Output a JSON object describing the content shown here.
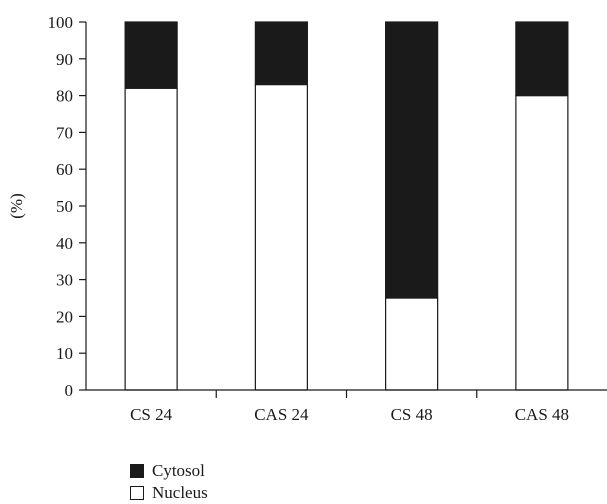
{
  "chart_data": {
    "type": "bar",
    "stacked": true,
    "categories": [
      "CS 24",
      "CAS 24",
      "CS 48",
      "CAS 48"
    ],
    "series": [
      {
        "name": "Nucleus",
        "values": [
          82,
          83,
          25,
          80
        ],
        "color": "#ffffff"
      },
      {
        "name": "Cytosol",
        "values": [
          18,
          17,
          75,
          20
        ],
        "color": "#1a1a1a"
      }
    ],
    "title": "",
    "xlabel": "",
    "ylabel": "(%)",
    "ylim": [
      0,
      100
    ],
    "yticks": [
      "0",
      "10",
      "20",
      "30",
      "40",
      "50",
      "60",
      "70",
      "80",
      "90",
      "100"
    ],
    "grid": false,
    "legend_position": "bottom-left",
    "legend": [
      {
        "label": "Cytosol",
        "color": "#1a1a1a"
      },
      {
        "label": "Nucleus",
        "color": "#ffffff"
      }
    ]
  }
}
